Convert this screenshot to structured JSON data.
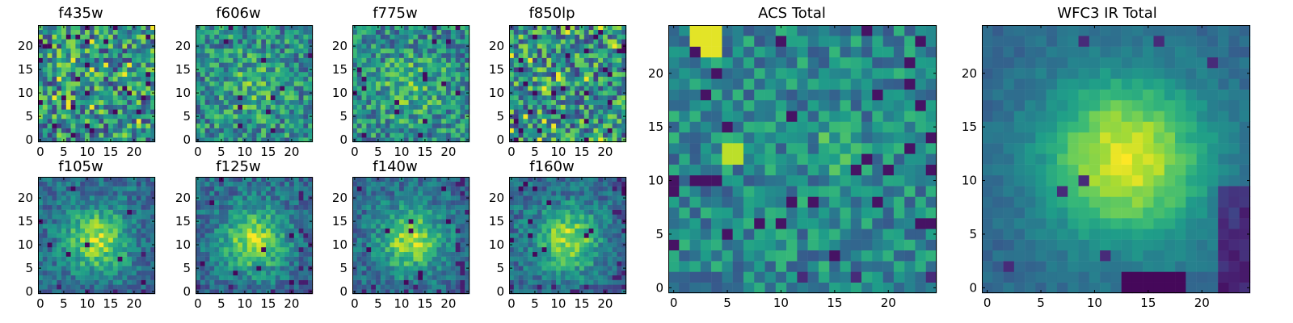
{
  "figure": {
    "background": "#ffffff"
  },
  "chart_data": [
    {
      "type": "heatmap",
      "title": "f435w",
      "grid": "25x25",
      "xlim": [
        0,
        24
      ],
      "ylim": [
        0,
        24
      ],
      "x_ticks": [
        "0",
        "5",
        "10",
        "15",
        "20"
      ],
      "y_ticks": [
        "0",
        "5",
        "10",
        "15",
        "20"
      ],
      "colormap": "viridis",
      "pattern": "noise",
      "seed": 11
    },
    {
      "type": "heatmap",
      "title": "f606w",
      "grid": "25x25",
      "xlim": [
        0,
        24
      ],
      "ylim": [
        0,
        24
      ],
      "x_ticks": [
        "0",
        "5",
        "10",
        "15",
        "20"
      ],
      "y_ticks": [
        "0",
        "5",
        "10",
        "15",
        "20"
      ],
      "colormap": "viridis",
      "pattern": "weak-center",
      "seed": 23
    },
    {
      "type": "heatmap",
      "title": "f775w",
      "grid": "25x25",
      "xlim": [
        0,
        24
      ],
      "ylim": [
        0,
        24
      ],
      "x_ticks": [
        "0",
        "5",
        "10",
        "15",
        "20"
      ],
      "y_ticks": [
        "0",
        "5",
        "10",
        "15",
        "20"
      ],
      "colormap": "viridis",
      "pattern": "weak-center",
      "seed": 37
    },
    {
      "type": "heatmap",
      "title": "f850lp",
      "grid": "25x25",
      "xlim": [
        0,
        24
      ],
      "ylim": [
        0,
        24
      ],
      "x_ticks": [
        "0",
        "5",
        "10",
        "15",
        "20"
      ],
      "y_ticks": [
        "0",
        "5",
        "10",
        "15",
        "20"
      ],
      "colormap": "viridis",
      "pattern": "noise",
      "seed": 41
    },
    {
      "type": "heatmap",
      "title": "f105w",
      "grid": "25x25",
      "xlim": [
        0,
        24
      ],
      "ylim": [
        0,
        24
      ],
      "x_ticks": [
        "0",
        "5",
        "10",
        "15",
        "20"
      ],
      "y_ticks": [
        "0",
        "5",
        "10",
        "15",
        "20"
      ],
      "colormap": "viridis",
      "pattern": "center",
      "seed": 53
    },
    {
      "type": "heatmap",
      "title": "f125w",
      "grid": "25x25",
      "xlim": [
        0,
        24
      ],
      "ylim": [
        0,
        24
      ],
      "x_ticks": [
        "0",
        "5",
        "10",
        "15",
        "20"
      ],
      "y_ticks": [
        "0",
        "5",
        "10",
        "15",
        "20"
      ],
      "colormap": "viridis",
      "pattern": "center",
      "seed": 67
    },
    {
      "type": "heatmap",
      "title": "f140w",
      "grid": "25x25",
      "xlim": [
        0,
        24
      ],
      "ylim": [
        0,
        24
      ],
      "x_ticks": [
        "0",
        "5",
        "10",
        "15",
        "20"
      ],
      "y_ticks": [
        "0",
        "5",
        "10",
        "15",
        "20"
      ],
      "colormap": "viridis",
      "pattern": "center",
      "seed": 79
    },
    {
      "type": "heatmap",
      "title": "f160w",
      "grid": "25x25",
      "xlim": [
        0,
        24
      ],
      "ylim": [
        0,
        24
      ],
      "x_ticks": [
        "0",
        "5",
        "10",
        "15",
        "20"
      ],
      "y_ticks": [
        "0",
        "5",
        "10",
        "15",
        "20"
      ],
      "colormap": "viridis",
      "pattern": "center",
      "seed": 83
    },
    {
      "type": "heatmap",
      "title": "ACS Total",
      "grid": "25x25",
      "xlim": [
        0,
        24
      ],
      "ylim": [
        0,
        24
      ],
      "x_ticks": [
        "0",
        "5",
        "10",
        "15",
        "20"
      ],
      "y_ticks": [
        "0",
        "5",
        "10",
        "15",
        "20"
      ],
      "colormap": "viridis",
      "pattern": "acs-total",
      "seed": 97
    },
    {
      "type": "heatmap",
      "title": "WFC3 IR Total",
      "grid": "25x25",
      "xlim": [
        0,
        24
      ],
      "ylim": [
        0,
        24
      ],
      "x_ticks": [
        "0",
        "5",
        "10",
        "15",
        "20"
      ],
      "y_ticks": [
        "0",
        "5",
        "10",
        "15",
        "20"
      ],
      "colormap": "viridis",
      "pattern": "ir-total",
      "seed": 101
    }
  ]
}
